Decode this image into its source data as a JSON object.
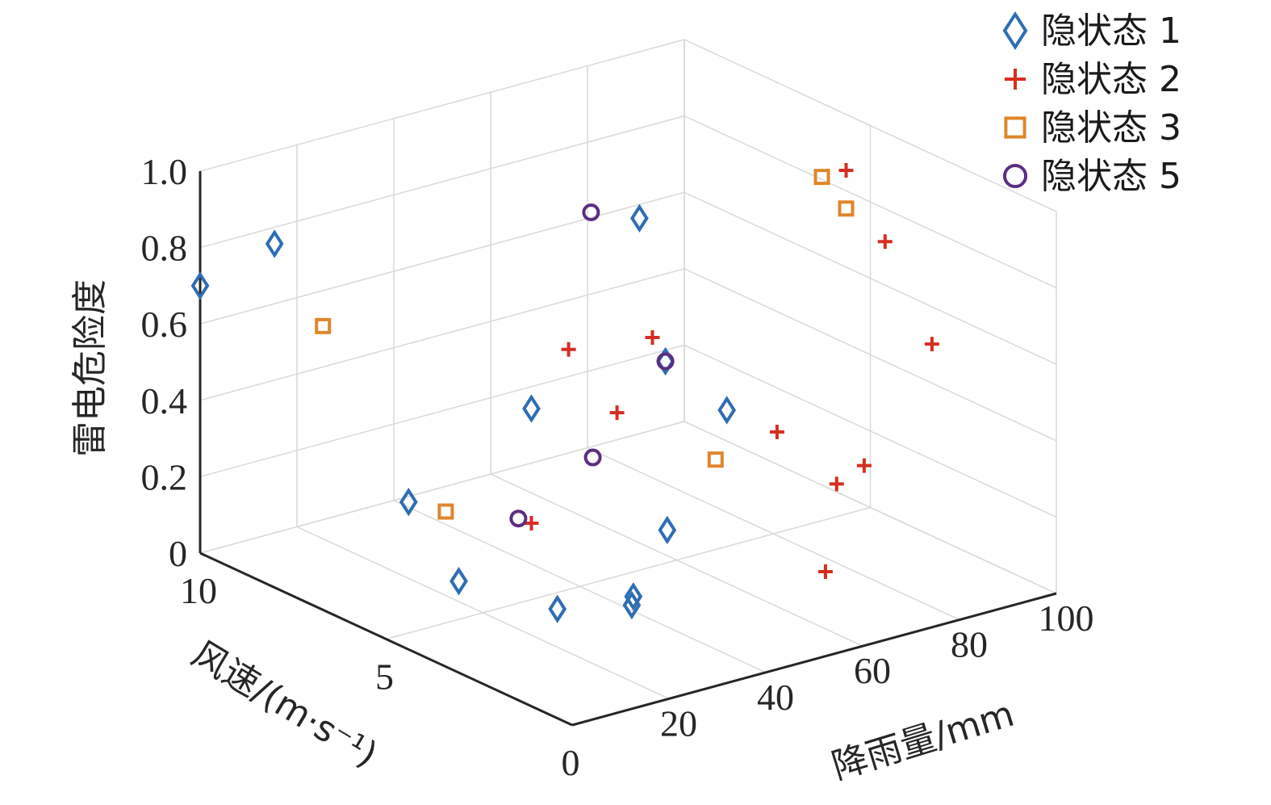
{
  "chart_data": {
    "type": "scatter3d",
    "xlabel": "风速/(m·s⁻¹)",
    "ylabel": "降雨量/mm",
    "zlabel": "雷电危险度",
    "xlim": [
      0,
      10
    ],
    "ylim": [
      0,
      100
    ],
    "zlim": [
      0,
      1.0
    ],
    "x_ticks": [
      "0",
      "5",
      "10"
    ],
    "y_ticks": [
      "20",
      "40",
      "60",
      "80",
      "100"
    ],
    "z_ticks": [
      "0",
      "0.2",
      "0.4",
      "0.6",
      "0.8",
      "1.0"
    ],
    "grid": true,
    "legend_position": "top-right",
    "series": [
      {
        "name": "隐状态 1",
        "marker": "diamond",
        "color": "#2e6db4",
        "points": [
          [
            10,
            0,
            0.7
          ],
          [
            8,
            0,
            0.9
          ],
          [
            7,
            20,
            0.2
          ],
          [
            5,
            30,
            0.5
          ],
          [
            5,
            15,
            0.1
          ],
          [
            3,
            20,
            0.1
          ],
          [
            2,
            28,
            0.15
          ],
          [
            1,
            20,
            0.2
          ],
          [
            4,
            50,
            0.6
          ],
          [
            3,
            55,
            0.5
          ],
          [
            2,
            35,
            0.3
          ],
          [
            6,
            60,
            0.85
          ]
        ]
      },
      {
        "name": "隐状态 2",
        "marker": "plus",
        "color": "#d62d20",
        "points": [
          [
            2,
            80,
            0.9
          ],
          [
            1,
            82,
            0.67
          ],
          [
            2,
            70,
            0.3
          ],
          [
            1,
            68,
            0.4
          ],
          [
            4,
            30,
            0.7
          ],
          [
            4,
            40,
            0.5
          ],
          [
            5,
            30,
            0.2
          ],
          [
            5,
            95,
            0.9
          ],
          [
            1,
            50,
            0.55
          ],
          [
            5,
            55,
            0.6
          ],
          [
            1,
            60,
            0.15
          ]
        ]
      },
      {
        "name": "隐状态 3",
        "marker": "square",
        "color": "#e0862b",
        "points": [
          [
            5,
            95,
            0.8
          ],
          [
            5,
            90,
            0.9
          ],
          [
            8,
            10,
            0.65
          ],
          [
            6,
            20,
            0.22
          ],
          [
            2,
            45,
            0.45
          ]
        ]
      },
      {
        "name": "隐状态 5",
        "marker": "circle",
        "color": "#5a2d82",
        "points": [
          [
            6,
            50,
            0.9
          ],
          [
            4,
            35,
            0.4
          ],
          [
            4,
            50,
            0.6
          ],
          [
            6,
            35,
            0.15
          ]
        ]
      }
    ]
  }
}
